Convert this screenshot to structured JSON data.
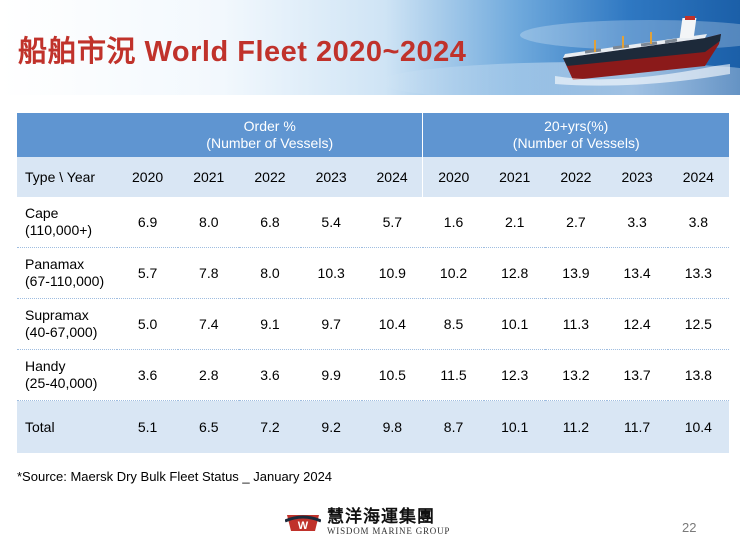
{
  "title": "船舶市況 World Fleet 2020~2024",
  "colors": {
    "title": "#c0322b",
    "header_blue": "#5f95d1",
    "header_light": "#d9e6f4"
  },
  "table": {
    "group_headers": [
      {
        "line1": "Order %",
        "line2": "(Number of Vessels)"
      },
      {
        "line1": "20+yrs(%)",
        "line2": "(Number of Vessels)"
      }
    ],
    "type_header": "Type \\ Year",
    "years": [
      "2020",
      "2021",
      "2022",
      "2023",
      "2024"
    ],
    "rows": [
      {
        "name": "Cape",
        "size": "(110,000+)",
        "order": [
          "6.9",
          "8.0",
          "6.8",
          "5.4",
          "5.7"
        ],
        "age": [
          "1.6",
          "2.1",
          "2.7",
          "3.3",
          "3.8"
        ]
      },
      {
        "name": "Panamax",
        "size": "(67-110,000)",
        "order": [
          "5.7",
          "7.8",
          "8.0",
          "10.3",
          "10.9"
        ],
        "age": [
          "10.2",
          "12.8",
          "13.9",
          "13.4",
          "13.3"
        ]
      },
      {
        "name": "Supramax",
        "size": "(40-67,000)",
        "order": [
          "5.0",
          "7.4",
          "9.1",
          "9.7",
          "10.4"
        ],
        "age": [
          "8.5",
          "10.1",
          "11.3",
          "12.4",
          "12.5"
        ]
      },
      {
        "name": "Handy",
        "size": "(25-40,000)",
        "order": [
          "3.6",
          "2.8",
          "3.6",
          "9.9",
          "10.5"
        ],
        "age": [
          "11.5",
          "12.3",
          "13.2",
          "13.7",
          "13.8"
        ]
      }
    ],
    "total": {
      "name": "Total",
      "order": [
        "5.1",
        "6.5",
        "7.2",
        "9.2",
        "9.8"
      ],
      "age": [
        "8.7",
        "10.1",
        "11.2",
        "11.7",
        "10.4"
      ]
    }
  },
  "source": "*Source: Maersk Dry Bulk Fleet Status _ January 2024",
  "logo": {
    "chinese": "慧洋海運集團",
    "english": "WISDOM MARINE GROUP",
    "mark_letter": "W",
    "icon": "wisdom-logo-icon"
  },
  "page_number": "22"
}
